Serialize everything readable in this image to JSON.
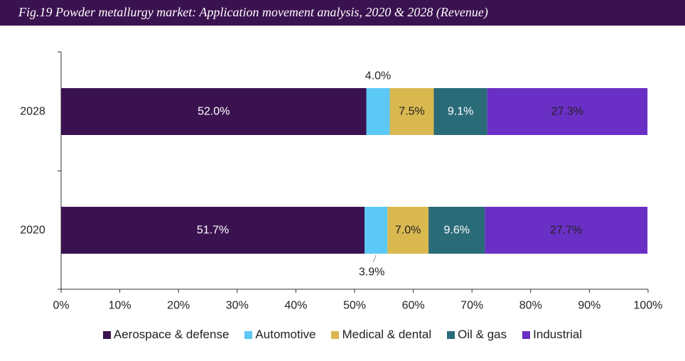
{
  "title": "Fig.19  Powder metallurgy market: Application movement analysis, 2020 & 2028 (Revenue)",
  "chart_data": {
    "type": "bar",
    "orientation": "horizontal",
    "stacked": true,
    "categories": [
      "2028",
      "2020"
    ],
    "series": [
      {
        "name": "Aerospace & defense",
        "color": "#3b1250",
        "values": [
          52.0,
          51.7
        ],
        "labels": [
          "52.0%",
          "51.7%"
        ],
        "label_color": "#ffffff",
        "label_position": [
          "inside",
          "inside"
        ]
      },
      {
        "name": "Automotive",
        "color": "#5bc8f5",
        "values": [
          4.0,
          3.9
        ],
        "labels": [
          "4.0%",
          "3.9%"
        ],
        "label_color": "#222222",
        "label_position": [
          "above",
          "below"
        ]
      },
      {
        "name": "Medical & dental",
        "color": "#d9b850",
        "values": [
          7.5,
          7.0
        ],
        "labels": [
          "7.5%",
          "7.0%"
        ],
        "label_color": "#222222",
        "label_position": [
          "inside",
          "inside"
        ]
      },
      {
        "name": "Oil & gas",
        "color": "#2a6b78",
        "values": [
          9.1,
          9.6
        ],
        "labels": [
          "9.1%",
          "9.6%"
        ],
        "label_color": "#ffffff",
        "label_position": [
          "inside",
          "inside"
        ]
      },
      {
        "name": "Industrial",
        "color": "#6a2fc4",
        "values": [
          27.3,
          27.7
        ],
        "labels": [
          "27.3%",
          "27.7%"
        ],
        "label_color": "#222222",
        "label_position": [
          "inside",
          "inside"
        ]
      }
    ],
    "xlim": [
      0,
      100
    ],
    "xticks": [
      "0%",
      "10%",
      "20%",
      "30%",
      "40%",
      "50%",
      "60%",
      "70%",
      "80%",
      "90%",
      "100%"
    ],
    "grid": false,
    "legend_position": "bottom"
  }
}
